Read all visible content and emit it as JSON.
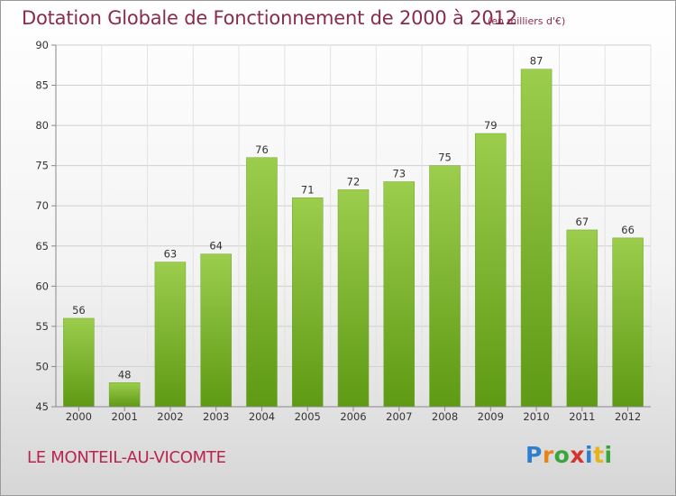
{
  "chart_data": {
    "type": "bar",
    "title": "Dotation Globale de Fonctionnement de 2000 à 2012",
    "subtitle": "(en milliers d'€)",
    "categories": [
      "2000",
      "2001",
      "2002",
      "2003",
      "2004",
      "2005",
      "2006",
      "2007",
      "2008",
      "2009",
      "2010",
      "2011",
      "2012"
    ],
    "values": [
      56,
      48,
      63,
      64,
      76,
      71,
      72,
      73,
      75,
      79,
      87,
      67,
      66
    ],
    "ylim": [
      45,
      90
    ],
    "yticks": [
      45,
      50,
      55,
      60,
      65,
      70,
      75,
      80,
      85,
      90
    ],
    "grid": true,
    "colors": {
      "bar_top": "#9ccd4d",
      "bar_bottom": "#5e9a14",
      "title": "#8a2b4a",
      "commune": "#b9254f"
    }
  },
  "footer": {
    "commune": "LE MONTEIL-AU-VICOMTE",
    "brand": [
      "P",
      "r",
      "o",
      "x",
      "i",
      "t",
      "i"
    ],
    "brand_colors": [
      "#2f7fd0",
      "#e8841a",
      "#3aa53a",
      "#d4342c",
      "#2f7fd0",
      "#e8b21a",
      "#3aa53a"
    ]
  }
}
